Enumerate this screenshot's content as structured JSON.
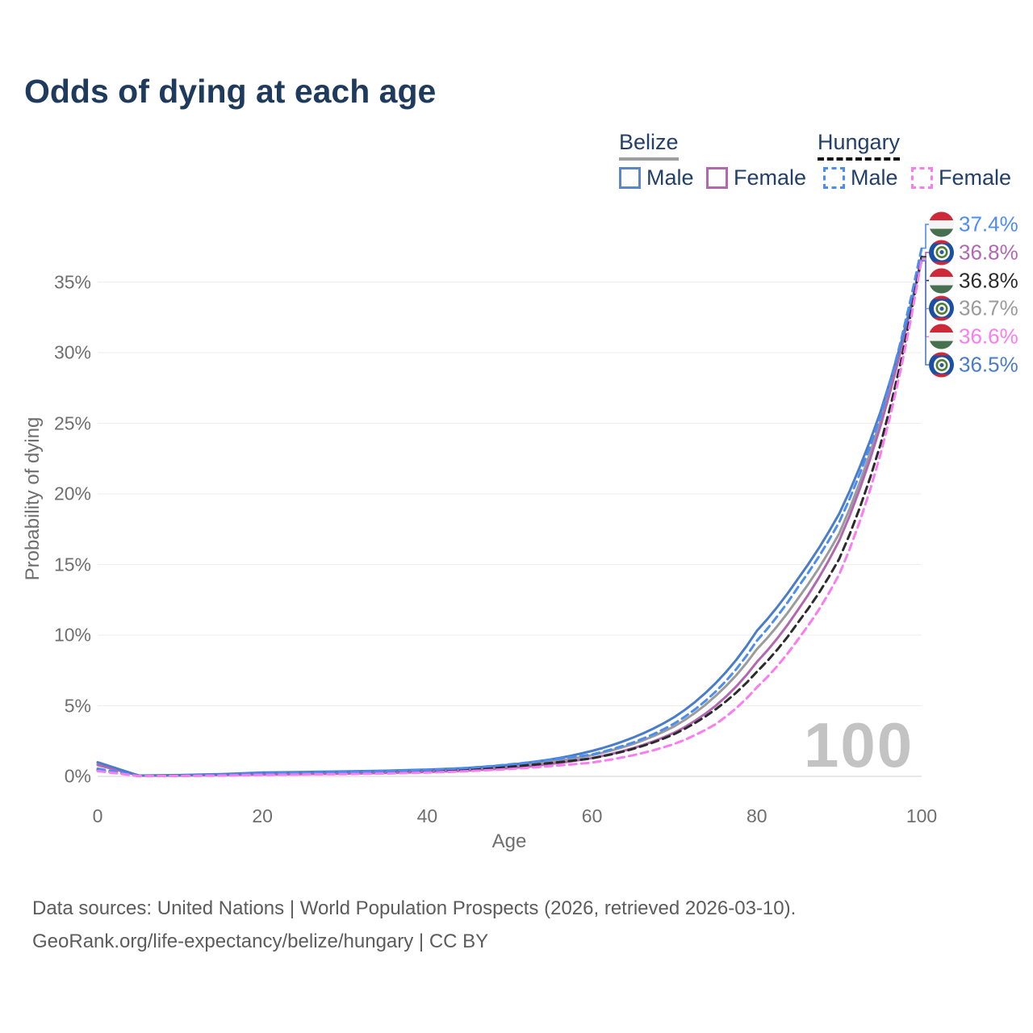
{
  "title": "Odds of dying at each age",
  "legend": {
    "belize": {
      "label": "Belize",
      "male": "Male",
      "female": "Female"
    },
    "hungary": {
      "label": "Hungary",
      "male": "Male",
      "female": "Female"
    }
  },
  "watermark": "100",
  "footer": {
    "line1": "Data sources: United Nations | World Population Prospects (2026, retrieved 2026-03-10).",
    "line2": "GeoRank.org/life-expectancy/belize/hungary | CC BY"
  },
  "colors": {
    "title_navy": "#1e3a5c",
    "belize_male": "#4a7cc9",
    "belize_female": "#b168b1",
    "belize_total": "#9b9b9b",
    "hungary_male": "#4d8def",
    "hungary_female": "#fb7cf1",
    "hungary_total": "#2b2b2b",
    "gridline": "#ededed",
    "zero_line": "#e0e0e0",
    "tick_text": "#6f6f6f",
    "watermark_gray": "#c3c3c3"
  },
  "chart_data": {
    "type": "line",
    "title": "Odds of dying at each age",
    "xlabel": "Age",
    "ylabel": "Probability of dying",
    "xlim": [
      0,
      100
    ],
    "ylim_pct": [
      0,
      38.5
    ],
    "x_ticks": [
      0,
      20,
      40,
      60,
      80,
      100
    ],
    "y_ticks_pct": [
      0,
      5,
      10,
      15,
      20,
      25,
      30,
      35
    ],
    "grid": "horizontal",
    "legend_position": "top-right",
    "ages": [
      0,
      5,
      10,
      15,
      20,
      25,
      30,
      35,
      40,
      45,
      50,
      55,
      60,
      65,
      70,
      75,
      80,
      85,
      90,
      95,
      100
    ],
    "series": [
      {
        "id": "belize-total",
        "name": "Belize",
        "country": "Belize",
        "dash": "solid",
        "color": "#9b9b9b",
        "values_pct": [
          0.9,
          0.055,
          0.075,
          0.12,
          0.2,
          0.24,
          0.27,
          0.32,
          0.4,
          0.51,
          0.7,
          1.04,
          1.5,
          2.3,
          3.55,
          5.7,
          9.0,
          12.6,
          17.2,
          25.2,
          36.7
        ]
      },
      {
        "id": "belize-female",
        "name": "Belize Female",
        "country": "Belize",
        "dash": "solid",
        "color": "#b168b1",
        "values_pct": [
          0.8,
          0.05,
          0.06,
          0.09,
          0.13,
          0.16,
          0.19,
          0.24,
          0.31,
          0.42,
          0.58,
          0.88,
          1.3,
          2.0,
          3.1,
          5.0,
          8.1,
          11.8,
          16.7,
          24.8,
          36.8
        ]
      },
      {
        "id": "belize-male",
        "name": "Belize Male",
        "country": "Belize",
        "dash": "solid",
        "color": "#4a7cc9",
        "values_pct": [
          1.0,
          0.06,
          0.09,
          0.16,
          0.27,
          0.31,
          0.35,
          0.4,
          0.48,
          0.6,
          0.82,
          1.2,
          1.8,
          2.75,
          4.2,
          6.6,
          10.3,
          14.0,
          18.6,
          25.8,
          36.5
        ]
      },
      {
        "id": "hungary-total",
        "name": "Hungary",
        "country": "Hungary",
        "dash": "dashed",
        "color": "#2b2b2b",
        "values_pct": [
          0.45,
          0.025,
          0.04,
          0.08,
          0.16,
          0.2,
          0.23,
          0.28,
          0.36,
          0.48,
          0.68,
          0.95,
          1.28,
          1.95,
          3.0,
          4.75,
          7.4,
          10.9,
          15.4,
          23.5,
          36.8
        ]
      },
      {
        "id": "hungary-male",
        "name": "Hungary Male",
        "country": "Hungary",
        "dash": "dashed",
        "color": "#4d8def",
        "values_pct": [
          0.55,
          0.03,
          0.05,
          0.1,
          0.22,
          0.27,
          0.3,
          0.36,
          0.45,
          0.6,
          0.85,
          1.18,
          1.55,
          2.4,
          3.75,
          6.0,
          9.6,
          13.4,
          18.0,
          25.5,
          37.4
        ]
      },
      {
        "id": "hungary-female",
        "name": "Hungary Female",
        "country": "Hungary",
        "dash": "dashed",
        "color": "#fb7cf1",
        "values_pct": [
          0.38,
          0.02,
          0.03,
          0.06,
          0.1,
          0.13,
          0.16,
          0.2,
          0.27,
          0.37,
          0.52,
          0.73,
          0.98,
          1.5,
          2.3,
          3.7,
          6.3,
          9.7,
          14.3,
          22.8,
          36.6
        ]
      }
    ],
    "end_labels": [
      {
        "text": "37.4%",
        "value_pct": 37.4,
        "flag": "hungary",
        "series": "hungary-male",
        "color": "#4d8def"
      },
      {
        "text": "36.8%",
        "value_pct": 36.8,
        "flag": "belize",
        "series": "belize-female",
        "color": "#b168b1"
      },
      {
        "text": "36.8%",
        "value_pct": 36.8,
        "flag": "hungary",
        "series": "hungary-total",
        "color": "#2b2b2b"
      },
      {
        "text": "36.7%",
        "value_pct": 36.7,
        "flag": "belize",
        "series": "belize-total",
        "color": "#9b9b9b"
      },
      {
        "text": "36.6%",
        "value_pct": 36.6,
        "flag": "hungary",
        "series": "hungary-female",
        "color": "#fb7cf1"
      },
      {
        "text": "36.5%",
        "value_pct": 36.5,
        "flag": "belize",
        "series": "belize-male",
        "color": "#4a7cc9"
      }
    ]
  }
}
